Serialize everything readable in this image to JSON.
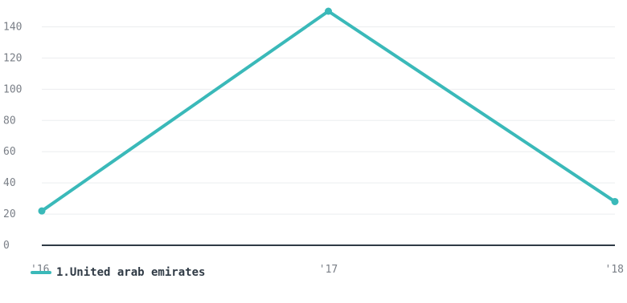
{
  "chart_data": {
    "type": "line",
    "categories": [
      "'16",
      "'17",
      "'18"
    ],
    "y_ticks": [
      "0",
      "20",
      "40",
      "60",
      "80",
      "100",
      "120",
      "140"
    ],
    "ylim": [
      0,
      150
    ],
    "grid": true,
    "legend_position": "bottom-left",
    "series": [
      {
        "name": "1.United arab emirates",
        "color": "#3ab9b9",
        "values": [
          22,
          150,
          28
        ]
      }
    ]
  },
  "colors": {
    "axis": "#2f3a45",
    "grid": "#ebedef",
    "tick_text": "#7a7f87"
  }
}
